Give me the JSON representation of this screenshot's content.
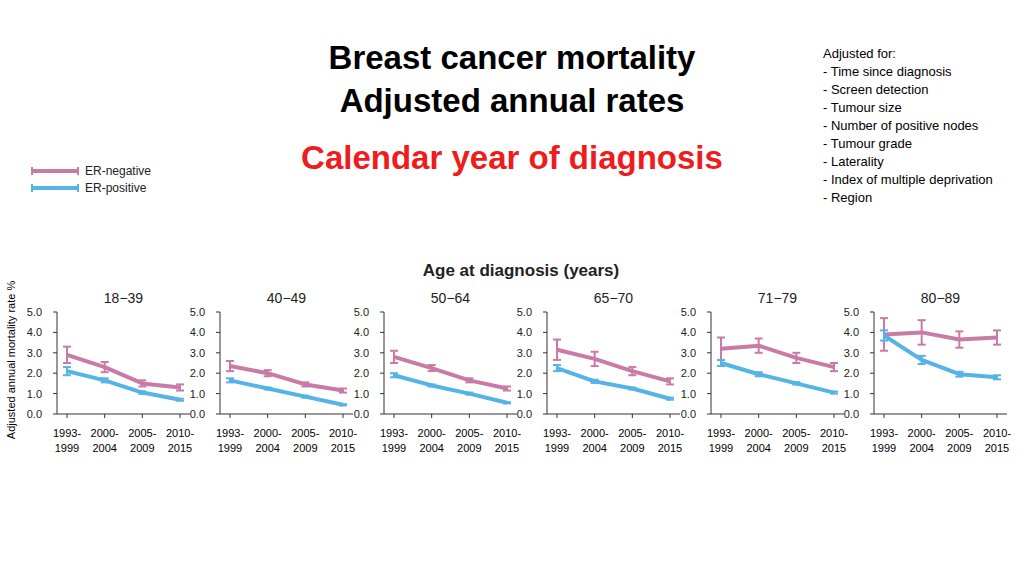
{
  "title": [
    "Breast cancer mortality",
    "Adjusted annual rates"
  ],
  "subtitle": "Calendar year of diagnosis",
  "adjustments": {
    "heading": "Adjusted for:",
    "items": [
      "- Time since diagnosis",
      "- Screen detection",
      "- Tumour size",
      "- Number of positive nodes",
      "- Tumour grade",
      "- Laterality",
      "- Index of multiple deprivation",
      "- Region"
    ]
  },
  "panel_group_label": "Age at diagnosis (years)",
  "y_label": "Adjusted annual mortality rate %",
  "chart_data": [
    {
      "type": "line",
      "title": "18−39",
      "categories": [
        "1993-1999",
        "2000-2004",
        "2005-2009",
        "2010-2015"
      ],
      "series": [
        {
          "name": "ER-negative",
          "color": "#c97aa6",
          "values": [
            2.9,
            2.3,
            1.5,
            1.3
          ],
          "errors": [
            0.4,
            0.25,
            0.15,
            0.15
          ]
        },
        {
          "name": "ER-positive",
          "color": "#55b3e6",
          "values": [
            2.1,
            1.65,
            1.05,
            0.7
          ],
          "errors": [
            0.2,
            0.1,
            0.06,
            0.05
          ]
        }
      ],
      "ylim": [
        0,
        5
      ],
      "yticks": [
        {
          "value": 0,
          "label": "0.0"
        },
        {
          "value": 1,
          "label": "1.0"
        },
        {
          "value": 2,
          "label": "2.0"
        },
        {
          "value": 3,
          "label": "3.0"
        },
        {
          "value": 4,
          "label": "4.0"
        },
        {
          "value": 5,
          "label": "5.0"
        }
      ]
    },
    {
      "type": "line",
      "title": "40−49",
      "categories": [
        "1993-1999",
        "2000-2004",
        "2005-2009",
        "2010-2015"
      ],
      "series": [
        {
          "color": "#c97aa6",
          "values": [
            2.35,
            2.0,
            1.45,
            1.15
          ],
          "errors": [
            0.25,
            0.15,
            0.1,
            0.1
          ]
        },
        {
          "color": "#55b3e6",
          "values": [
            1.65,
            1.25,
            0.85,
            0.45
          ],
          "errors": [
            0.1,
            0.05,
            0.05,
            0.03
          ]
        }
      ],
      "ylim": [
        0,
        5
      ],
      "yticks": [
        {
          "value": 0,
          "label": "0.0"
        },
        {
          "value": 1,
          "label": "1.0"
        },
        {
          "value": 2,
          "label": "2.0"
        },
        {
          "value": 3,
          "label": "3.0"
        },
        {
          "value": 4,
          "label": "4.0"
        },
        {
          "value": 5,
          "label": "5.0"
        }
      ]
    },
    {
      "type": "line",
      "title": "50−64",
      "categories": [
        "1993-1999",
        "2000-2004",
        "2005-2009",
        "2010-2015"
      ],
      "series": [
        {
          "color": "#c97aa6",
          "values": [
            2.8,
            2.25,
            1.65,
            1.25
          ],
          "errors": [
            0.3,
            0.15,
            0.1,
            0.1
          ]
        },
        {
          "color": "#55b3e6",
          "values": [
            1.9,
            1.4,
            1.0,
            0.55
          ],
          "errors": [
            0.1,
            0.05,
            0.05,
            0.03
          ]
        }
      ],
      "ylim": [
        0,
        5
      ],
      "yticks": [
        {
          "value": 0,
          "label": "0.0"
        },
        {
          "value": 1,
          "label": "1.0"
        },
        {
          "value": 2,
          "label": "2.0"
        },
        {
          "value": 3,
          "label": "3.0"
        },
        {
          "value": 4,
          "label": "4.0"
        },
        {
          "value": 5,
          "label": "5.0"
        }
      ]
    },
    {
      "type": "line",
      "title": "65−70",
      "categories": [
        "1993-1999",
        "2000-2004",
        "2005-2009",
        "2010-2015"
      ],
      "series": [
        {
          "color": "#c97aa6",
          "values": [
            3.15,
            2.7,
            2.1,
            1.6
          ],
          "errors": [
            0.5,
            0.35,
            0.2,
            0.15
          ]
        },
        {
          "color": "#55b3e6",
          "values": [
            2.25,
            1.6,
            1.25,
            0.75
          ],
          "errors": [
            0.15,
            0.08,
            0.05,
            0.05
          ]
        }
      ],
      "ylim": [
        0,
        5
      ],
      "yticks": [
        {
          "value": 0,
          "label": "0.0"
        },
        {
          "value": 1,
          "label": "1.0"
        },
        {
          "value": 2,
          "label": "2.0"
        },
        {
          "value": 3,
          "label": "3.0"
        },
        {
          "value": 4,
          "label": "4.0"
        },
        {
          "value": 5,
          "label": "5.0"
        }
      ]
    },
    {
      "type": "line",
      "title": "71−79",
      "categories": [
        "1993-1999",
        "2000-2004",
        "2005-2009",
        "2010-2015"
      ],
      "series": [
        {
          "color": "#c97aa6",
          "values": [
            3.2,
            3.35,
            2.75,
            2.3
          ],
          "errors": [
            0.55,
            0.35,
            0.25,
            0.2
          ]
        },
        {
          "color": "#55b3e6",
          "values": [
            2.5,
            1.95,
            1.5,
            1.05
          ],
          "errors": [
            0.15,
            0.1,
            0.06,
            0.05
          ]
        }
      ],
      "ylim": [
        0,
        5
      ],
      "yticks": [
        {
          "value": 0,
          "label": "0.0"
        },
        {
          "value": 1,
          "label": "1.0"
        },
        {
          "value": 2,
          "label": "2.0"
        },
        {
          "value": 3,
          "label": "3.0"
        },
        {
          "value": 4,
          "label": "4.0"
        },
        {
          "value": 5,
          "label": "5.0"
        }
      ]
    },
    {
      "type": "line",
      "title": "80−89",
      "categories": [
        "1993-1999",
        "2000-2004",
        "2005-2009",
        "2010-2015"
      ],
      "series": [
        {
          "color": "#c97aa6",
          "values": [
            3.9,
            4.0,
            3.65,
            3.75
          ],
          "errors": [
            0.8,
            0.6,
            0.4,
            0.35
          ]
        },
        {
          "color": "#55b3e6",
          "values": [
            3.85,
            2.65,
            1.95,
            1.8
          ],
          "errors": [
            0.25,
            0.2,
            0.12,
            0.1
          ]
        }
      ],
      "ylim": [
        0,
        5
      ],
      "yticks": [
        {
          "value": 0,
          "label": "0.0"
        },
        {
          "value": 1,
          "label": "1.0"
        },
        {
          "value": 2,
          "label": "2.0"
        },
        {
          "value": 3,
          "label": "3.0"
        },
        {
          "value": 4,
          "label": "4.0"
        },
        {
          "value": 5,
          "label": "5.0"
        }
      ]
    }
  ]
}
